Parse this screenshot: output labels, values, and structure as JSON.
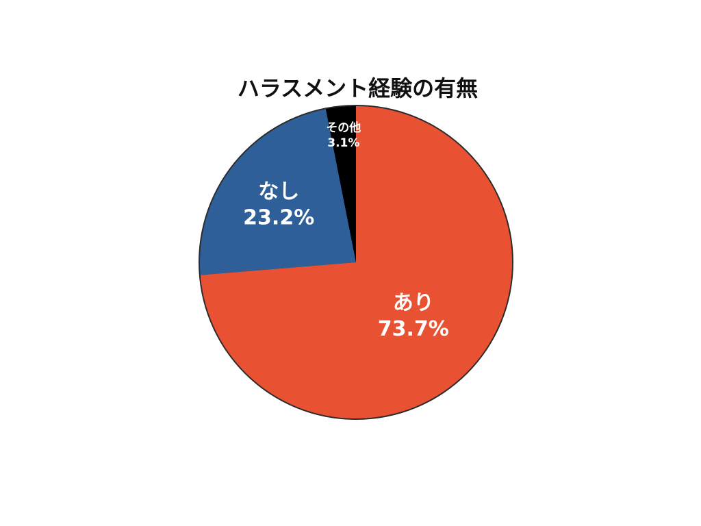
{
  "chart_data": {
    "type": "pie",
    "title": "ハラスメント経験の有無",
    "categories": [
      "あり",
      "なし",
      "その他"
    ],
    "values": [
      73.7,
      23.2,
      3.1
    ],
    "value_labels": [
      "73.7%",
      "23.2%",
      "3.1%"
    ],
    "start": "12 o'clock",
    "direction": "clockwise",
    "colors": [
      "#e85233",
      "#2f5f99",
      "#000000"
    ],
    "outline_color": "#2b2b2b",
    "legend": "none"
  }
}
